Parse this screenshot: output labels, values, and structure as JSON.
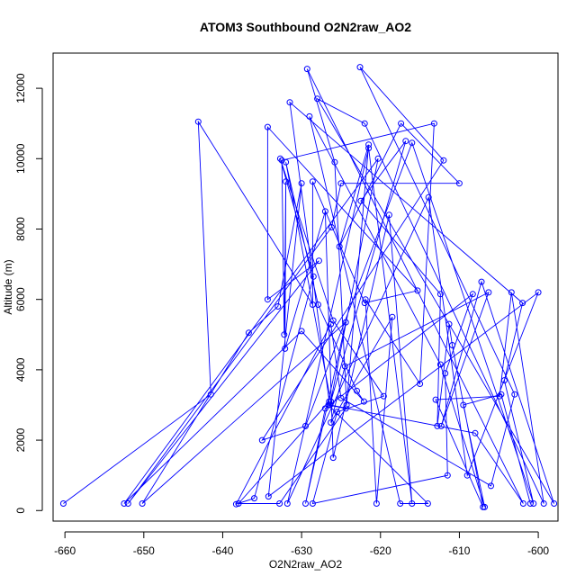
{
  "chart_data": {
    "type": "line",
    "title": "ATOM3 Southbound O2N2raw_AO2",
    "xlabel": "O2N2raw_AO2",
    "ylabel": "Altitude (m)",
    "xlim": [
      -661.5,
      -597.5
    ],
    "ylim": [
      -300,
      13000
    ],
    "xticks": [
      -660,
      -650,
      -640,
      -630,
      -620,
      -610,
      -600
    ],
    "yticks": [
      0,
      2000,
      4000,
      6000,
      8000,
      10000,
      12000
    ],
    "series_color": "#0000ff",
    "markers": "open-circle",
    "points": [
      [
        -660.2,
        200
      ],
      [
        -641.5,
        3300
      ],
      [
        -643.1,
        11050
      ],
      [
        -628.6,
        5850
      ],
      [
        -628.6,
        9350
      ],
      [
        -622.0,
        5900
      ],
      [
        -615.3,
        6250
      ],
      [
        -634.3,
        10900
      ],
      [
        -634.3,
        6000
      ],
      [
        -627.8,
        7100
      ],
      [
        -652.0,
        200
      ],
      [
        -626.2,
        8050
      ],
      [
        -625.0,
        9300
      ],
      [
        -610.0,
        9300
      ],
      [
        -617.4,
        11000
      ],
      [
        -625.2,
        7500
      ],
      [
        -621.5,
        10400
      ],
      [
        -624.3,
        3000
      ],
      [
        -625.8,
        9900
      ],
      [
        -629.3,
        12550
      ],
      [
        -601.9,
        200
      ],
      [
        -608.0,
        2200
      ],
      [
        -626.4,
        3000
      ],
      [
        -620.3,
        10000
      ],
      [
        -652.5,
        200
      ],
      [
        -630.0,
        5100
      ],
      [
        -622.1,
        3100
      ],
      [
        -623.0,
        3400
      ],
      [
        -627.9,
        5850
      ],
      [
        -632.0,
        9900
      ],
      [
        -626.3,
        3100
      ],
      [
        -616.8,
        10500
      ],
      [
        -622.5,
        8800
      ],
      [
        -612.4,
        6150
      ],
      [
        -612.8,
        2400
      ],
      [
        -611.3,
        5300
      ],
      [
        -610.9,
        4700
      ],
      [
        -607.0,
        100
      ],
      [
        -613.0,
        3150
      ],
      [
        -604.9,
        3250
      ],
      [
        -603.4,
        6200
      ],
      [
        -599.3,
        200
      ],
      [
        -622.0,
        11000
      ],
      [
        -628.0,
        11700
      ],
      [
        -598.0,
        200
      ],
      [
        -607.2,
        6500
      ],
      [
        -612.3,
        2400
      ],
      [
        -606.3,
        6200
      ],
      [
        -624.5,
        4100
      ],
      [
        -626.3,
        2500
      ],
      [
        -618.5,
        5500
      ],
      [
        -620.5,
        200
      ],
      [
        -621.9,
        6000
      ],
      [
        -615.0,
        3600
      ],
      [
        -613.2,
        11000
      ],
      [
        -632.5,
        9950
      ],
      [
        -632.2,
        5000
      ],
      [
        -632.0,
        9350
      ],
      [
        -632.1,
        4600
      ],
      [
        -627.0,
        8500
      ],
      [
        -626.0,
        1500
      ],
      [
        -618.9,
        8400
      ],
      [
        -616.0,
        200
      ],
      [
        -621.5,
        10300
      ],
      [
        -631.8,
        200
      ],
      [
        -613.9,
        8900
      ],
      [
        -609.0,
        1000
      ],
      [
        -600.0,
        6200
      ],
      [
        -634.2,
        400
      ],
      [
        -630.0,
        9300
      ],
      [
        -633.0,
        5800
      ],
      [
        -636.7,
        5050
      ],
      [
        -650.2,
        200
      ],
      [
        -624.4,
        5350
      ],
      [
        -629.5,
        200
      ],
      [
        -627.0,
        2900
      ],
      [
        -608.3,
        6150
      ],
      [
        -611.8,
        3900
      ],
      [
        -611.5,
        1000
      ],
      [
        -628.6,
        200
      ],
      [
        -625.5,
        2800
      ],
      [
        -619.6,
        3250
      ],
      [
        -626.0,
        5400
      ],
      [
        -632.7,
        10000
      ],
      [
        -628.5,
        6650
      ],
      [
        -636.0,
        350
      ],
      [
        -638.3,
        180
      ],
      [
        -626.3,
        5300
      ],
      [
        -625.0,
        3200
      ],
      [
        -606.0,
        700
      ],
      [
        -603.0,
        3300
      ],
      [
        -622.6,
        12600
      ],
      [
        -612.0,
        9950
      ],
      [
        -635.0,
        2000
      ],
      [
        -629.5,
        2400
      ],
      [
        -616.0,
        10450
      ],
      [
        -600.6,
        200
      ],
      [
        -604.3,
        3700
      ],
      [
        -602.0,
        5900
      ],
      [
        -631.5,
        11600
      ],
      [
        -626.5,
        3100
      ],
      [
        -638.0,
        200
      ],
      [
        -632.8,
        200
      ],
      [
        -624.4,
        2900
      ],
      [
        -626.6,
        3000
      ],
      [
        -614.0,
        200
      ],
      [
        -617.5,
        200
      ],
      [
        -629.0,
        11200
      ],
      [
        -612.4,
        4150
      ],
      [
        -606.8,
        100
      ],
      [
        -609.5,
        3000
      ],
      [
        -604.7,
        3300
      ],
      [
        -601.0,
        200
      ]
    ]
  }
}
